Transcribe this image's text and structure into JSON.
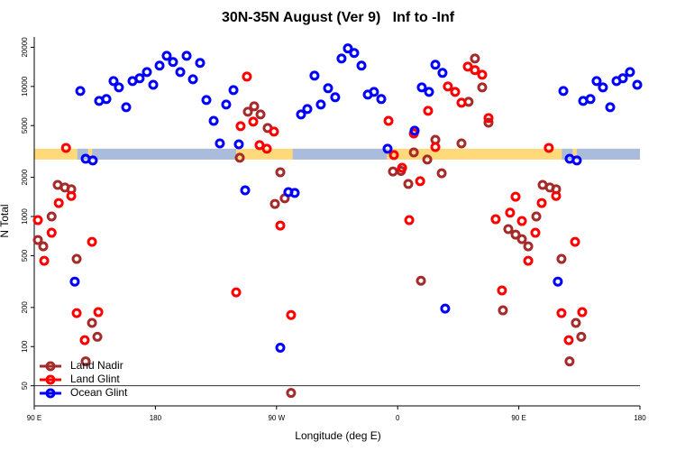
{
  "chart_data": {
    "type": "scatter",
    "title": "30N-35N August (Ver 9)   Inf to -Inf",
    "x_label": "Longitude (deg E)",
    "y_label": "N Total",
    "xlim": [
      90,
      540
    ],
    "xticks": [
      {
        "value": 90,
        "label": "90 E"
      },
      {
        "value": 180,
        "label": "180"
      },
      {
        "value": 270,
        "label": "90 W"
      },
      {
        "value": 360,
        "label": "0"
      },
      {
        "value": 450,
        "label": "90 E"
      },
      {
        "value": 540,
        "label": "180"
      }
    ],
    "ylim": [
      35,
      24000
    ],
    "yticks": [
      50,
      100,
      200,
      500,
      1000,
      2000,
      5000,
      10000,
      20000
    ],
    "log_y": true,
    "reference_line": 50,
    "legend": "bottomleft",
    "strip": {
      "range": [
        2740,
        3320
      ],
      "land_color": "#ffd97a",
      "ocean_color": "#a9bcdc",
      "ocean": [
        [
          122,
          130
        ],
        [
          133,
          240
        ],
        [
          282,
          352
        ],
        [
          482,
          490
        ],
        [
          493,
          540
        ]
      ]
    },
    "series": [
      {
        "name": "Land Nadir",
        "color": "#a52a2a",
        "x": [
          92.7,
          96.7,
          102.9,
          107.4,
          112.8,
          117.5,
          121.5,
          128.2,
          132.9,
          136.9,
          242.7,
          248.7,
          253.4,
          258.1,
          263.4,
          268.8,
          272.8,
          276.1,
          280.8,
          356.5,
          362.5,
          367.9,
          372.0,
          377.3,
          382.0,
          388.0,
          392.7,
          407.4,
          412.7,
          417.4,
          422.8,
          427.5,
          438.2,
          442.2,
          447.6,
          452.3,
          457.0,
          463.0,
          467.7,
          473.1,
          477.7,
          481.7,
          487.7,
          492.4,
          496.4
        ],
        "values": [
          660,
          590,
          1000,
          1750,
          1670,
          1620,
          472,
          77,
          152,
          119,
          2830,
          6390,
          7030,
          6090,
          4790,
          1250,
          2190,
          1380,
          44,
          2220,
          2240,
          1780,
          3110,
          321,
          2740,
          3890,
          2150,
          3650,
          7620,
          16400,
          9840,
          5270,
          190,
          800,
          726,
          670,
          590,
          1000,
          1750,
          1670,
          1620,
          472,
          77,
          152,
          119
        ]
      },
      {
        "name": "Land Glint",
        "color": "#ff0000",
        "x": [
          92.7,
          97.4,
          102.9,
          108.2,
          113.6,
          117.5,
          121.5,
          127.5,
          132.9,
          137.6,
          240.0,
          243.3,
          248.0,
          252.7,
          257.4,
          262.8,
          268.1,
          272.8,
          280.8,
          353.2,
          357.2,
          363.3,
          368.6,
          372.0,
          376.7,
          382.6,
          388.0,
          397.3,
          402.7,
          407.4,
          412.1,
          417.4,
          422.8,
          427.5,
          432.8,
          437.5,
          443.5,
          447.6,
          452.3,
          457.0,
          462.3,
          467.0,
          472.3,
          477.7,
          481.7,
          487.1,
          491.8,
          497.1
        ],
        "values": [
          938,
          457,
          750,
          1270,
          3370,
          1440,
          181,
          112,
          639,
          184,
          261,
          4950,
          11900,
          5360,
          3540,
          3320,
          4500,
          852,
          175,
          5440,
          2970,
          2370,
          938,
          4350,
          1870,
          6490,
          3420,
          10000,
          9080,
          7500,
          14200,
          13340,
          12300,
          5710,
          953,
          270,
          1070,
          1420,
          923,
          457,
          750,
          1270,
          3370,
          1440,
          181,
          112,
          639,
          184
        ]
      },
      {
        "name": "Ocean Glint",
        "color": "#0000ff",
        "x": [
          120.1,
          124.2,
          128.2,
          133.5,
          138.2,
          143.6,
          148.9,
          152.9,
          158.3,
          163.0,
          168.3,
          173.7,
          178.4,
          183.1,
          188.4,
          193.1,
          198.5,
          203.2,
          207.9,
          213.2,
          217.9,
          223.3,
          227.9,
          232.6,
          238.0,
          242.0,
          246.7,
          272.8,
          278.8,
          283.5,
          288.2,
          292.9,
          298.2,
          302.9,
          308.3,
          313.6,
          318.3,
          323.0,
          327.7,
          333.1,
          337.8,
          342.4,
          347.8,
          352.5,
          372.6,
          377.9,
          383.3,
          388.0,
          393.3,
          395.3,
          479.0,
          483.1,
          487.8,
          493.1,
          497.8,
          503.2,
          507.8,
          512.5,
          517.9,
          522.6,
          527.3,
          532.6,
          538.0
        ],
        "values": [
          316,
          9230,
          2780,
          2700,
          7740,
          8000,
          11000,
          9840,
          6920,
          11000,
          11550,
          12900,
          10300,
          14450,
          17200,
          15400,
          12900,
          17200,
          11360,
          15160,
          7870,
          5440,
          3650,
          7260,
          9370,
          3590,
          1590,
          98,
          1540,
          1520,
          6090,
          6700,
          12100,
          7260,
          9690,
          8260,
          16400,
          19600,
          18070,
          14450,
          8660,
          9080,
          8000,
          3320,
          4570,
          9840,
          9080,
          14680,
          12710,
          196,
          316,
          9230,
          2780,
          2700,
          7740,
          8000,
          11000,
          9840,
          6920,
          11000,
          11550,
          12900,
          10300
        ]
      }
    ]
  }
}
